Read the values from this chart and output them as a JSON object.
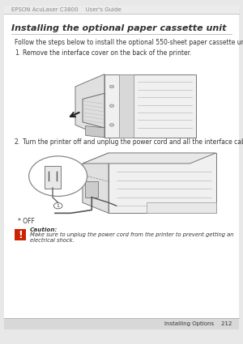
{
  "bg_color": "#e8e8e8",
  "page_bg": "#ffffff",
  "header_text": "EPSON AcuLaser C3800    User's Guide",
  "header_color": "#888888",
  "header_fontsize": 5.0,
  "header_line_color": "#bbbbbb",
  "title": "Installing the optional paper cassette unit",
  "title_fontsize": 8.0,
  "body_text1": "Follow the steps below to install the optional 550-sheet paper cassette unit.",
  "body_fontsize": 5.5,
  "step1_label": "1.",
  "step1_text": "Remove the interface cover on the back of the printer.",
  "step2_label": "2.",
  "step2_text": "Turn the printer off and unplug the power cord and all the interface cables.",
  "step_fontsize": 5.5,
  "off_text": "* OFF",
  "caution_title": "Caution:",
  "caution_body": "Make sure to unplug the power cord from the printer to prevent getting an electrical shock.",
  "caution_fontsize": 5.2,
  "footer_right": "Installing Options    212",
  "footer_fontsize": 5.0,
  "footer_bg": "#d8d8d8",
  "text_color": "#333333",
  "gray_light": "#f2f2f2",
  "gray_mid": "#cccccc",
  "gray_dark": "#888888"
}
